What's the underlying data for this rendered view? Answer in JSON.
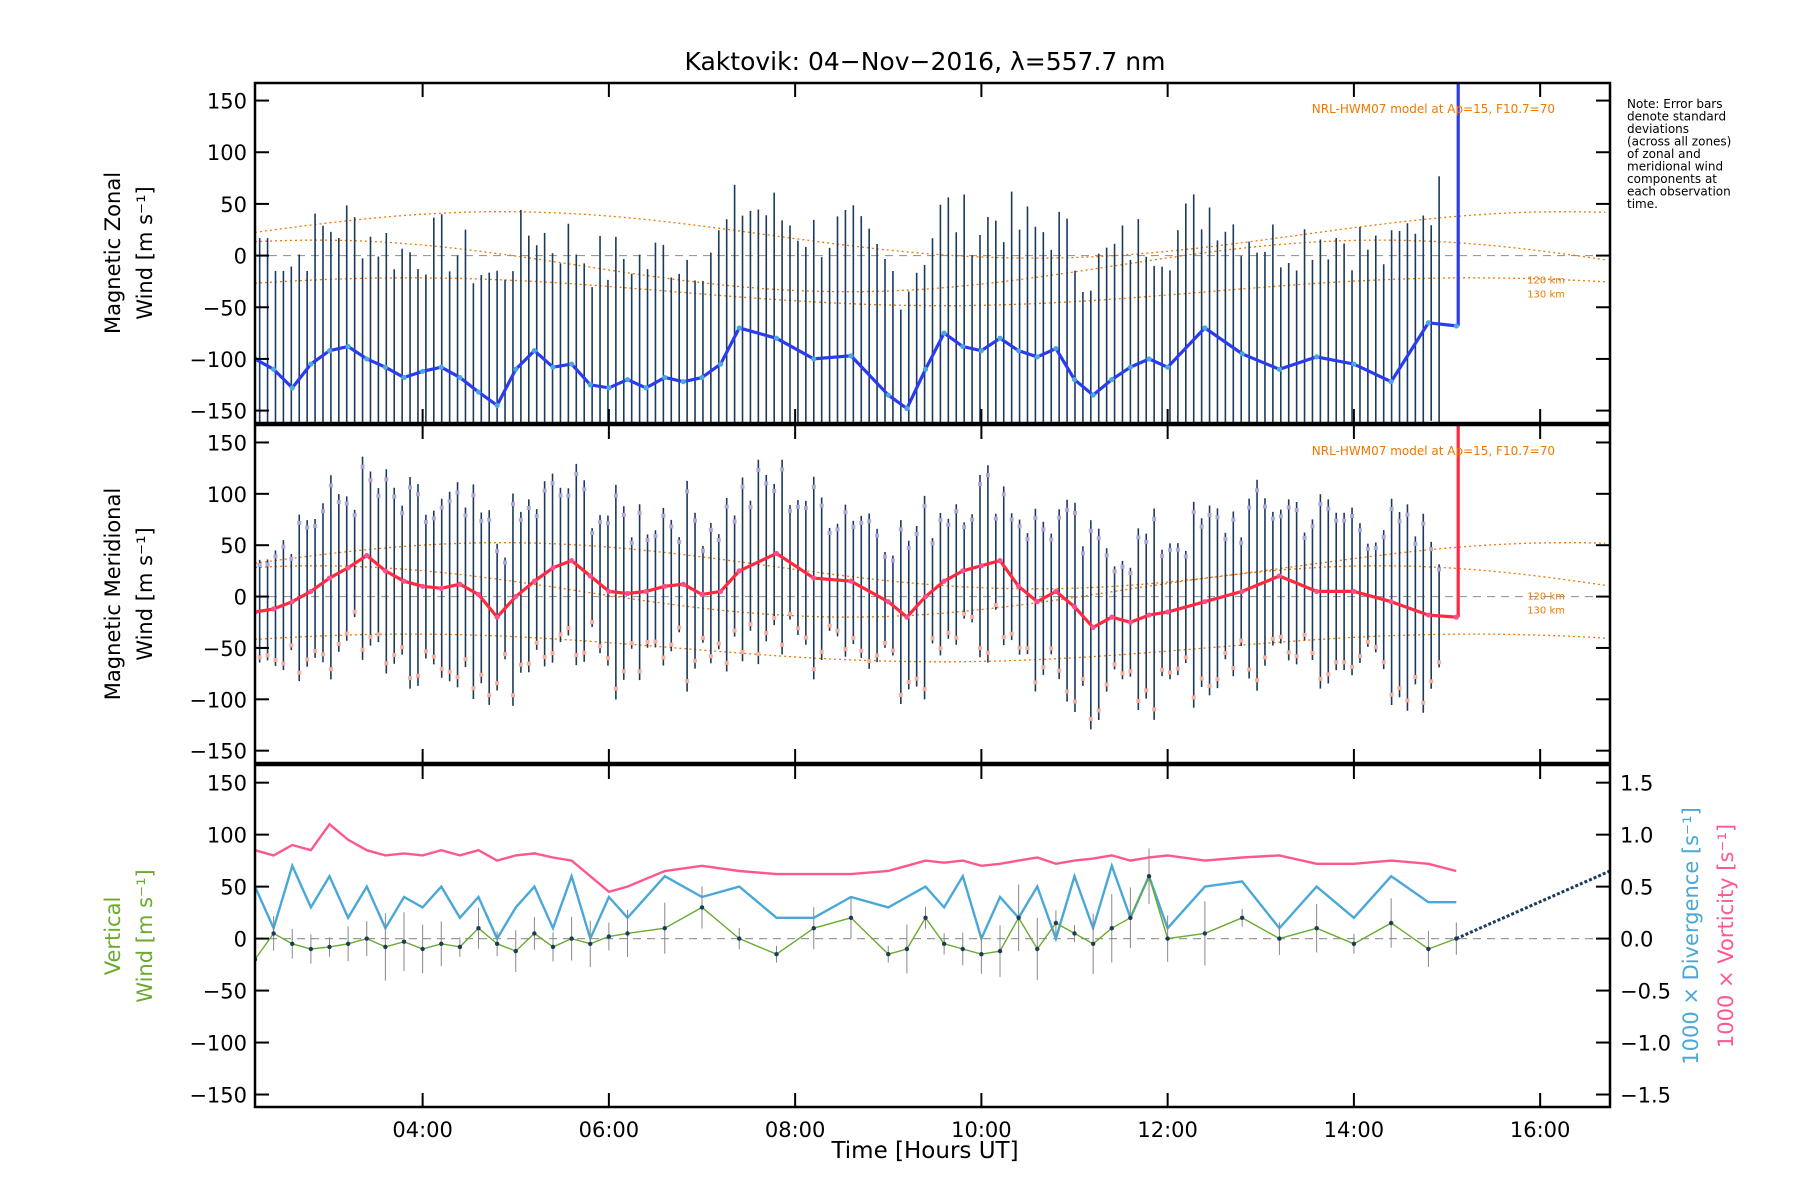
{
  "figure": {
    "title": "Kaktovik: 04−Nov−2016, λ=557.7 nm",
    "xlabel": "Time [Hours UT]",
    "note_lines": [
      "Note: Error bars",
      "denote standard",
      "deviations",
      "(across all zones)",
      "of zonal and",
      "meridional wind",
      "components at",
      "each observation",
      "time."
    ]
  },
  "colors": {
    "zonal_line": "#2a3cf0",
    "zonal_line_light": "#4aa8e0",
    "meridional_line": "#ff2a40",
    "meridional_line_light": "#ff4f8f",
    "errorbar": "#1b3a5c",
    "model": "#f07800",
    "vertical": "#6aaa30",
    "divergence": "#4aa8d8",
    "vorticity": "#ff5890",
    "zero_line": "#9a9a9a"
  },
  "chart_data": [
    {
      "type": "line",
      "panel": "zonal",
      "ylabel_lines": [
        "Magnetic Zonal",
        "Wind [m s⁻¹]"
      ],
      "xlim": [
        2.2,
        16.75
      ],
      "ylim": [
        -162,
        167
      ],
      "xticks": [
        4,
        6,
        8,
        10,
        12,
        14,
        16
      ],
      "xtick_labels": [
        "04:00",
        "06:00",
        "08:00",
        "10:00",
        "12:00",
        "14:00",
        "16:00"
      ],
      "yticks": [
        150,
        100,
        50,
        0,
        -50,
        -100,
        -150
      ],
      "ytick_labels": [
        "150",
        "100",
        "50",
        "0",
        "−50",
        "−100",
        "−150"
      ],
      "model_label": "NRL-HWM07 model at Ap=15, F10.7=70",
      "altitude_labels": [
        "120 km",
        "130 km"
      ],
      "x": [
        2.2,
        2.4,
        2.6,
        2.8,
        3.0,
        3.2,
        3.4,
        3.6,
        3.8,
        4.0,
        4.2,
        4.4,
        4.6,
        4.8,
        5.0,
        5.2,
        5.4,
        5.6,
        5.8,
        6.0,
        6.2,
        6.4,
        6.6,
        6.8,
        7.0,
        7.2,
        7.4,
        7.8,
        8.2,
        8.6,
        9.0,
        9.2,
        9.4,
        9.6,
        9.8,
        10.0,
        10.2,
        10.4,
        10.6,
        10.8,
        11.0,
        11.2,
        11.4,
        11.6,
        11.8,
        12.0,
        12.4,
        12.8,
        13.2,
        13.6,
        14.0,
        14.4,
        14.8,
        15.1
      ],
      "y": [
        -100,
        -110,
        -128,
        -105,
        -92,
        -88,
        -100,
        -108,
        -118,
        -112,
        -108,
        -118,
        -132,
        -145,
        -110,
        -92,
        -108,
        -105,
        -125,
        -128,
        -120,
        -128,
        -118,
        -122,
        -118,
        -105,
        -70,
        -80,
        -100,
        -97,
        -135,
        -148,
        -110,
        -75,
        -88,
        -92,
        -80,
        -92,
        -98,
        -90,
        -120,
        -135,
        -120,
        -108,
        -100,
        -108,
        -70,
        -95,
        -110,
        -98,
        -105,
        -122,
        -65,
        -68
      ],
      "spike": {
        "x": 15.12,
        "y_from": -68,
        "y_to": 167
      }
    },
    {
      "type": "line",
      "panel": "meridional",
      "ylabel_lines": [
        "Magnetic Meridional",
        "Wind [m s⁻¹]"
      ],
      "xlim": [
        2.2,
        16.75
      ],
      "ylim": [
        -162,
        167
      ],
      "yticks": [
        150,
        100,
        50,
        0,
        -50,
        -100,
        -150
      ],
      "ytick_labels": [
        "150",
        "100",
        "50",
        "0",
        "−50",
        "−100",
        "−150"
      ],
      "model_label": "NRL-HWM07 model at Ap=15, F10.7=70",
      "altitude_labels": [
        "120 km",
        "130 km"
      ],
      "x": [
        2.2,
        2.4,
        2.6,
        2.8,
        3.0,
        3.2,
        3.4,
        3.6,
        3.8,
        4.0,
        4.2,
        4.4,
        4.6,
        4.8,
        5.0,
        5.2,
        5.4,
        5.6,
        5.8,
        6.0,
        6.2,
        6.4,
        6.6,
        6.8,
        7.0,
        7.2,
        7.4,
        7.8,
        8.2,
        8.6,
        9.0,
        9.2,
        9.4,
        9.6,
        9.8,
        10.0,
        10.2,
        10.4,
        10.6,
        10.8,
        11.0,
        11.2,
        11.4,
        11.6,
        11.8,
        12.0,
        12.4,
        12.8,
        13.2,
        13.6,
        14.0,
        14.4,
        14.8,
        15.1
      ],
      "y": [
        -15,
        -12,
        -5,
        5,
        18,
        28,
        40,
        25,
        15,
        10,
        8,
        12,
        2,
        -20,
        0,
        15,
        28,
        35,
        20,
        5,
        3,
        5,
        10,
        12,
        2,
        5,
        25,
        42,
        18,
        15,
        -5,
        -20,
        0,
        15,
        25,
        30,
        35,
        10,
        -5,
        5,
        -10,
        -30,
        -20,
        -25,
        -18,
        -15,
        -5,
        5,
        20,
        5,
        5,
        -5,
        -18,
        -20
      ],
      "spike": {
        "x": 15.12,
        "y_from": -20,
        "y_to": 167
      }
    },
    {
      "type": "line",
      "panel": "vertical",
      "ylabel_left_lines": [
        "Vertical",
        "Wind [m s⁻¹]"
      ],
      "ylabel_right_lines": [
        "1000 × Divergence [s⁻¹]",
        "1000 × Vorticity [s⁻¹]"
      ],
      "xlim": [
        2.2,
        16.75
      ],
      "ylim": [
        -162,
        167
      ],
      "right_ylim": [
        -1.62,
        1.67
      ],
      "yticks": [
        150,
        100,
        50,
        0,
        -50,
        -100,
        -150
      ],
      "ytick_labels": [
        "150",
        "100",
        "50",
        "0",
        "−50",
        "−100",
        "−150"
      ],
      "right_yticks": [
        1.5,
        1.0,
        0.5,
        0.0,
        -0.5,
        -1.0,
        -1.5
      ],
      "right_ytick_labels": [
        "1.5",
        "1.0",
        "0.5",
        "0.0",
        "−0.5",
        "−1.0",
        "−1.5"
      ],
      "vertical": {
        "x": [
          2.2,
          2.4,
          2.6,
          2.8,
          3.0,
          3.2,
          3.4,
          3.6,
          3.8,
          4.0,
          4.2,
          4.4,
          4.6,
          4.8,
          5.0,
          5.2,
          5.4,
          5.6,
          5.8,
          6.0,
          6.2,
          6.6,
          7.0,
          7.4,
          7.8,
          8.2,
          8.6,
          9.0,
          9.2,
          9.4,
          9.6,
          9.8,
          10.0,
          10.2,
          10.4,
          10.6,
          10.8,
          11.0,
          11.2,
          11.4,
          11.6,
          11.8,
          12.0,
          12.4,
          12.8,
          13.2,
          13.6,
          14.0,
          14.4,
          14.8,
          15.1
        ],
        "y": [
          -20,
          5,
          -5,
          -10,
          -8,
          -5,
          0,
          -8,
          -3,
          -10,
          -5,
          -8,
          10,
          -5,
          -12,
          5,
          -8,
          0,
          -5,
          2,
          5,
          10,
          30,
          0,
          -15,
          10,
          20,
          -15,
          -10,
          20,
          -5,
          -10,
          -15,
          -12,
          20,
          -10,
          15,
          5,
          -5,
          10,
          20,
          60,
          0,
          5,
          20,
          0,
          10,
          -5,
          15,
          -10,
          0
        ]
      },
      "divergence": {
        "x": [
          2.2,
          2.4,
          2.6,
          2.8,
          3.0,
          3.2,
          3.4,
          3.6,
          3.8,
          4.0,
          4.2,
          4.4,
          4.6,
          4.8,
          5.0,
          5.2,
          5.4,
          5.6,
          5.8,
          6.0,
          6.2,
          6.6,
          7.0,
          7.4,
          7.8,
          8.2,
          8.6,
          9.0,
          9.2,
          9.4,
          9.6,
          9.8,
          10.0,
          10.2,
          10.4,
          10.6,
          10.8,
          11.0,
          11.2,
          11.4,
          11.6,
          11.8,
          12.0,
          12.4,
          12.8,
          13.2,
          13.6,
          14.0,
          14.4,
          14.8,
          15.1
        ],
        "y": [
          0.5,
          0.1,
          0.7,
          0.3,
          0.6,
          0.2,
          0.5,
          0.1,
          0.4,
          0.3,
          0.5,
          0.2,
          0.4,
          0.0,
          0.3,
          0.5,
          0.1,
          0.6,
          0.0,
          0.4,
          0.2,
          0.6,
          0.4,
          0.5,
          0.2,
          0.2,
          0.4,
          0.3,
          0.4,
          0.5,
          0.3,
          0.6,
          0.0,
          0.4,
          0.2,
          0.5,
          0.0,
          0.6,
          0.1,
          0.7,
          0.2,
          0.6,
          0.1,
          0.5,
          0.55,
          0.1,
          0.5,
          0.2,
          0.6,
          0.35,
          0.35
        ]
      },
      "vorticity": {
        "x": [
          2.2,
          2.4,
          2.6,
          2.8,
          3.0,
          3.2,
          3.4,
          3.6,
          3.8,
          4.0,
          4.2,
          4.4,
          4.6,
          4.8,
          5.0,
          5.2,
          5.4,
          5.6,
          5.8,
          6.0,
          6.2,
          6.6,
          7.0,
          7.4,
          7.8,
          8.2,
          8.6,
          9.0,
          9.2,
          9.4,
          9.6,
          9.8,
          10.0,
          10.2,
          10.4,
          10.6,
          10.8,
          11.0,
          11.2,
          11.4,
          11.6,
          11.8,
          12.0,
          12.4,
          12.8,
          13.2,
          13.6,
          14.0,
          14.4,
          14.8,
          15.1
        ],
        "y": [
          0.85,
          0.8,
          0.9,
          0.85,
          1.1,
          0.95,
          0.85,
          0.8,
          0.82,
          0.8,
          0.85,
          0.8,
          0.85,
          0.75,
          0.8,
          0.82,
          0.78,
          0.75,
          0.6,
          0.45,
          0.5,
          0.65,
          0.7,
          0.65,
          0.62,
          0.62,
          0.62,
          0.65,
          0.7,
          0.75,
          0.73,
          0.75,
          0.7,
          0.72,
          0.75,
          0.78,
          0.72,
          0.75,
          0.77,
          0.8,
          0.75,
          0.78,
          0.8,
          0.75,
          0.78,
          0.8,
          0.72,
          0.72,
          0.75,
          0.72,
          0.65
        ]
      },
      "extension": {
        "x": [
          15.1,
          16.75
        ],
        "y": [
          0.0,
          0.65
        ]
      }
    }
  ]
}
